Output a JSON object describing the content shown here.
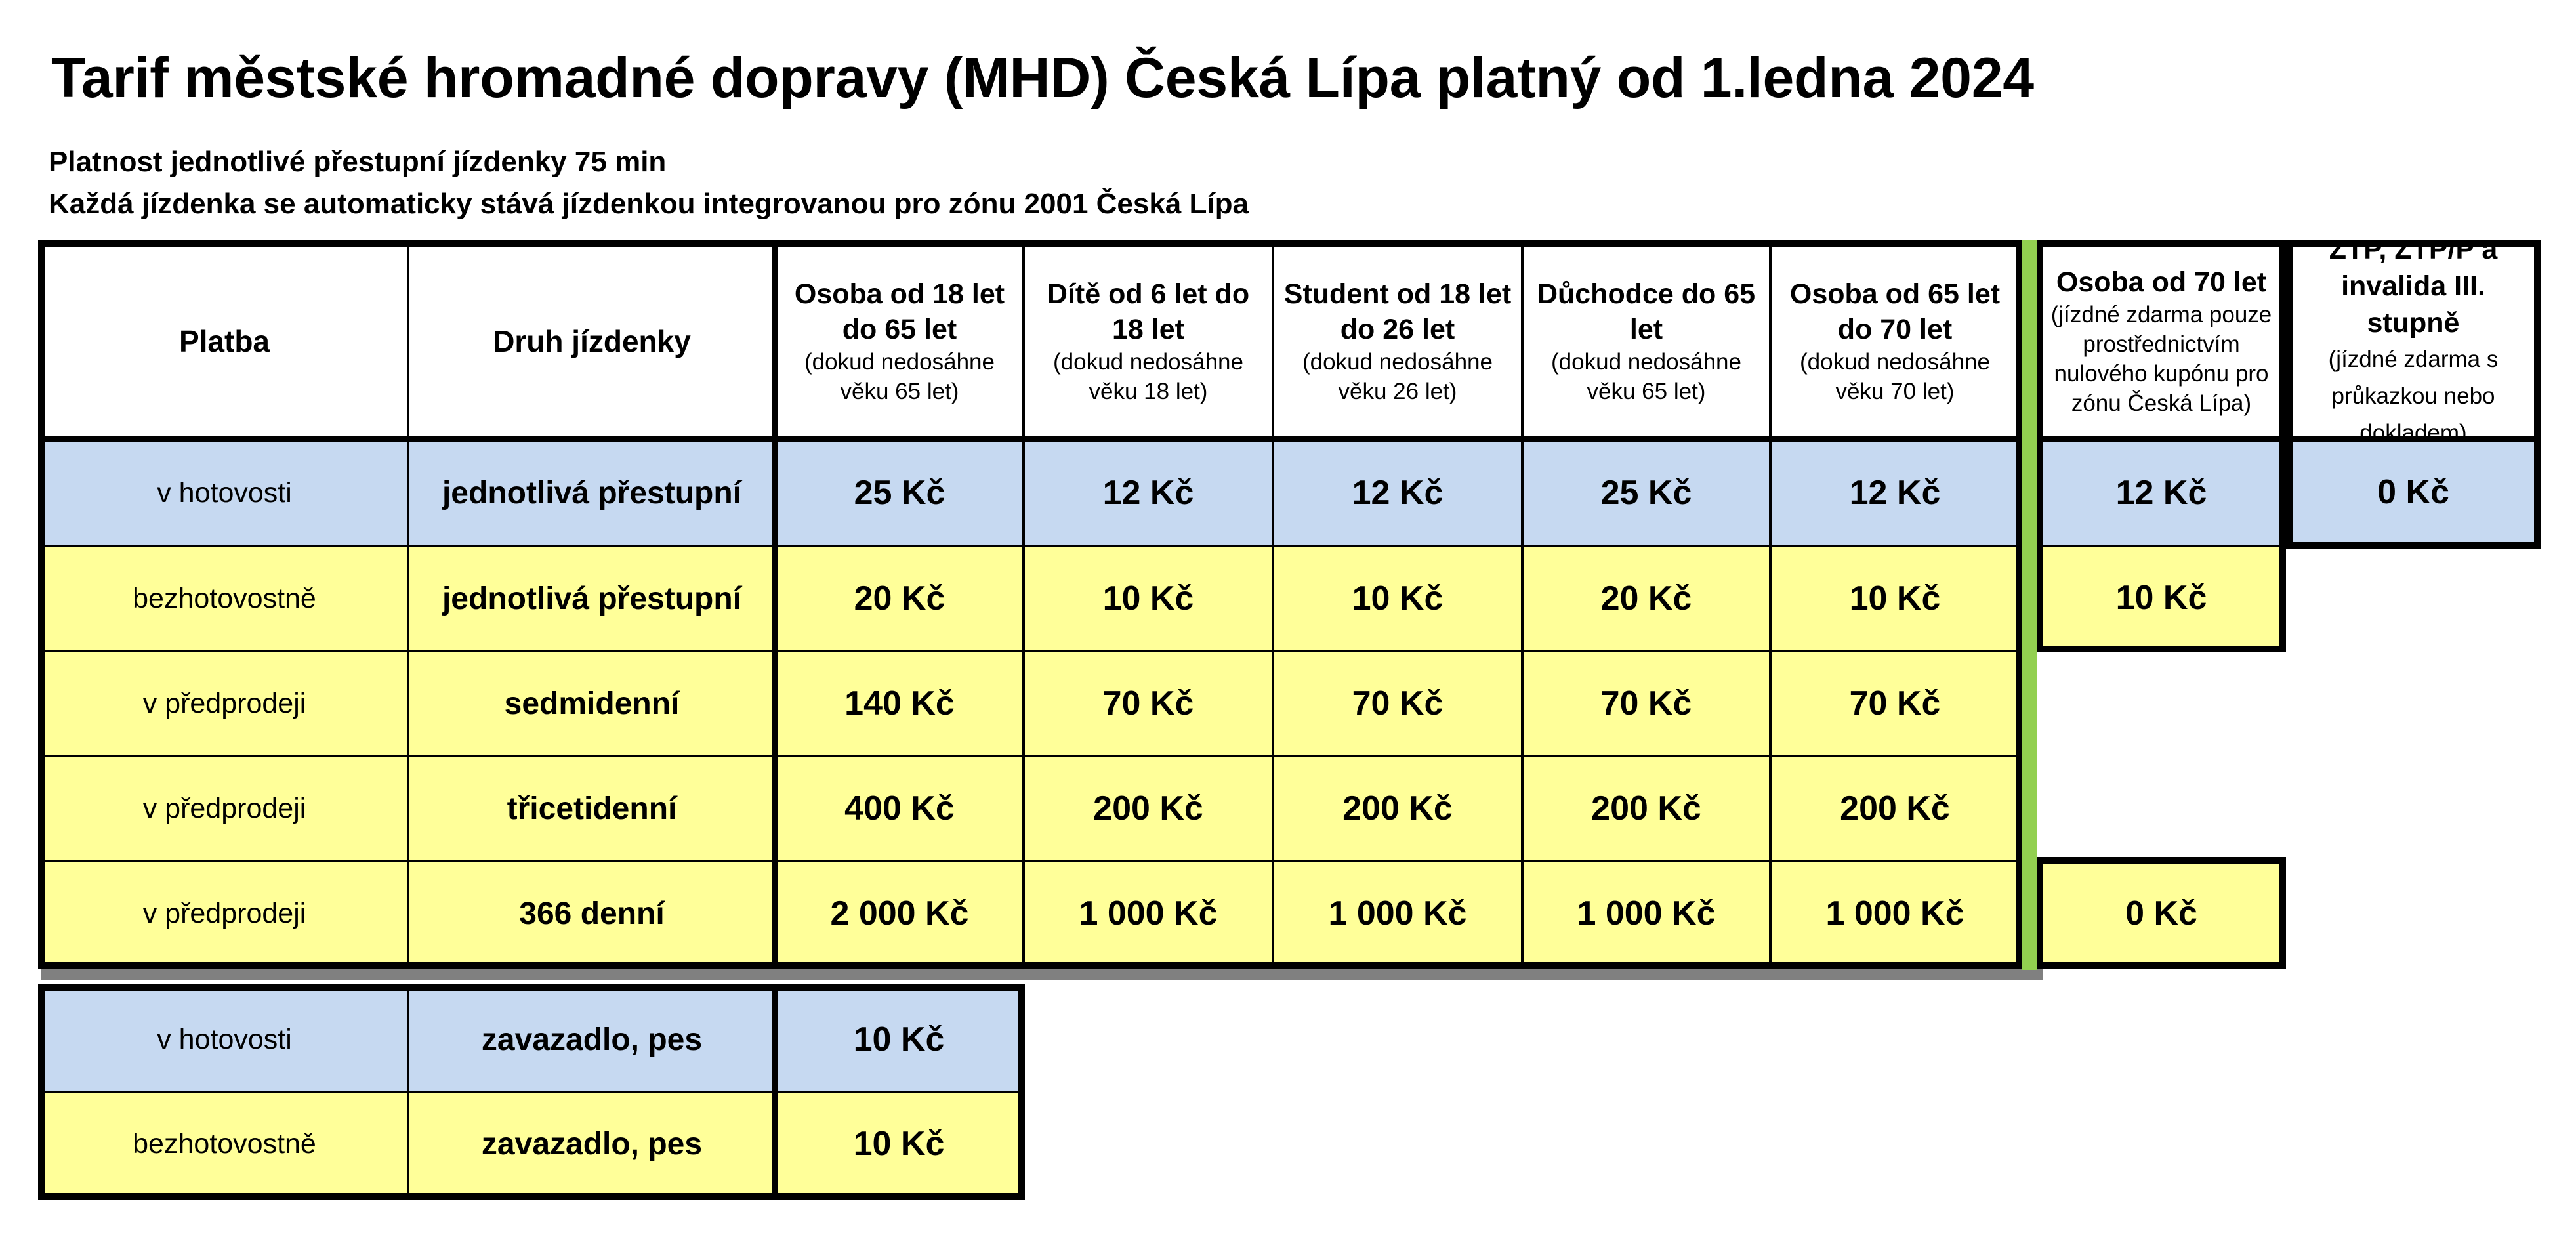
{
  "title": "Tarif městské hromadné dopravy (MHD) Česká Lípa platný od 1.ledna 2024",
  "subtitle_1": "Platnost jednotlivé přestupní jízdenky 75 min",
  "subtitle_2": "Každá jízdenka se automaticky stává jízdenkou integrovanou pro zónu 2001 Česká Lípa",
  "colors": {
    "cash_row": "#c6d9f1",
    "prepaid_row": "#ffff99",
    "separator_green": "#92d050",
    "shadow_gray": "#808080"
  },
  "headers": {
    "payment": "Platba",
    "ticket_type": "Druh jízdenky",
    "adult": {
      "main": "Osoba od 18 let do 65 let",
      "note": "(dokud nedosáhne věku 65 let)"
    },
    "child": {
      "main": "Dítě od 6 let do 18 let",
      "note": "(dokud nedosáhne věku 18 let)"
    },
    "student": {
      "main": "Student od 18 let do 26 let",
      "note": "(dokud nedosáhne věku 26 let)"
    },
    "pensioner": {
      "main": "Důchodce do 65 let",
      "note": "(dokud nedosáhne věku 65 let)"
    },
    "senior65": {
      "main": "Osoba od 65 let do 70 let",
      "note": "(dokud nedosáhne věku 70 let)"
    },
    "senior70": {
      "main": "Osoba od 70 let",
      "note": "(jízdné zdarma pouze prostřednictvím nulového kupónu pro zónu Česká Lípa)"
    },
    "ztp": {
      "main": "ZTP, ZTP/P a invalida III. stupně",
      "note": "(jízdné zdarma s průkazkou nebo dokladem)"
    }
  },
  "rows": [
    {
      "payment": "v hotovosti",
      "type": "jednotlivá přestupní",
      "prices": [
        "25 Kč",
        "12 Kč",
        "12 Kč",
        "25 Kč",
        "12 Kč"
      ],
      "senior70": "12 Kč",
      "ztp": "0 Kč"
    },
    {
      "payment": "bezhotovostně",
      "type": "jednotlivá přestupní",
      "prices": [
        "20 Kč",
        "10 Kč",
        "10 Kč",
        "20 Kč",
        "10 Kč"
      ],
      "senior70": "10 Kč"
    },
    {
      "payment": "v předprodeji",
      "type": "sedmidenní",
      "prices": [
        "140 Kč",
        "70 Kč",
        "70 Kč",
        "70 Kč",
        "70 Kč"
      ]
    },
    {
      "payment": "v předprodeji",
      "type": "třicetidenní",
      "prices": [
        "400 Kč",
        "200 Kč",
        "200 Kč",
        "200 Kč",
        "200 Kč"
      ]
    },
    {
      "payment": "v předprodeji",
      "type": "366 denní",
      "prices": [
        "2 000 Kč",
        "1 000 Kč",
        "1 000 Kč",
        "1 000 Kč",
        "1 000 Kč"
      ],
      "senior70": "0 Kč"
    }
  ],
  "luggage": [
    {
      "payment": "v hotovosti",
      "type": "zavazadlo, pes",
      "price": "10 Kč"
    },
    {
      "payment": "bezhotovostně",
      "type": "zavazadlo, pes",
      "price": "10 Kč"
    }
  ]
}
